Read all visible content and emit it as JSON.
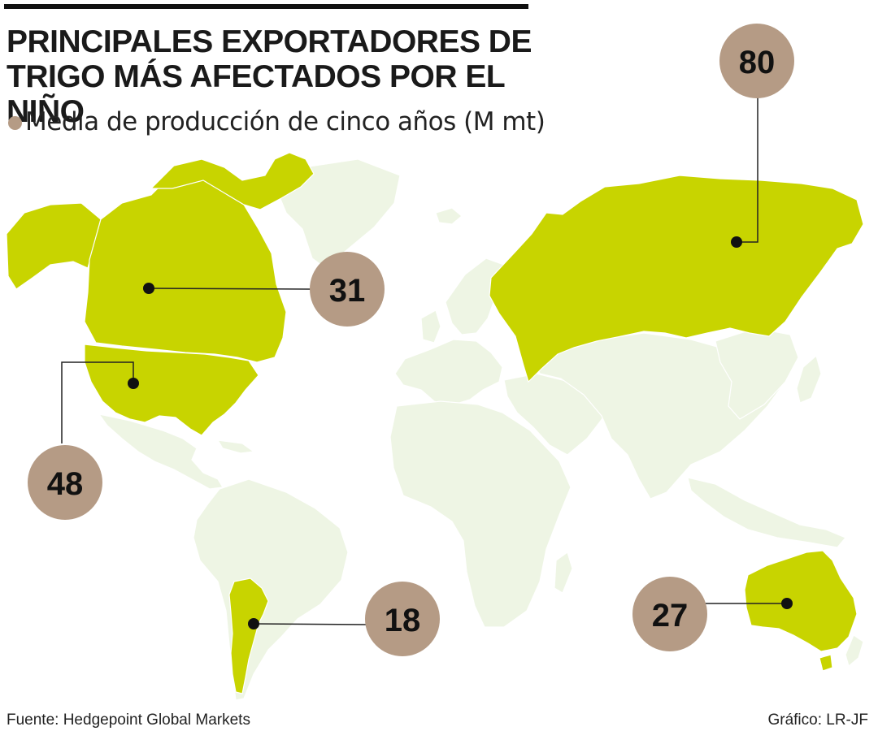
{
  "header": {
    "title_line1": "PRINCIPALES EXPORTADORES DE",
    "title_line2": "TRIGO MÁS AFECTADOS POR EL NIÑO"
  },
  "legend": {
    "label": "Media de producción de cinco años (M mt)",
    "color": "#b59b85"
  },
  "colors": {
    "highlight_land": "#c8d400",
    "other_land": "#eef5e4",
    "bubble": "#b59b85",
    "borders": "#ffffff",
    "leader_line": "#222222"
  },
  "countries": [
    {
      "id": "russia",
      "value": "80"
    },
    {
      "id": "canada",
      "value": "31"
    },
    {
      "id": "usa",
      "value": "48"
    },
    {
      "id": "argentina",
      "value": "18"
    },
    {
      "id": "australia",
      "value": "27"
    }
  ],
  "footer": {
    "source": "Fuente: Hedgepoint Global Markets",
    "credit": "Gráfico: LR-JF"
  }
}
